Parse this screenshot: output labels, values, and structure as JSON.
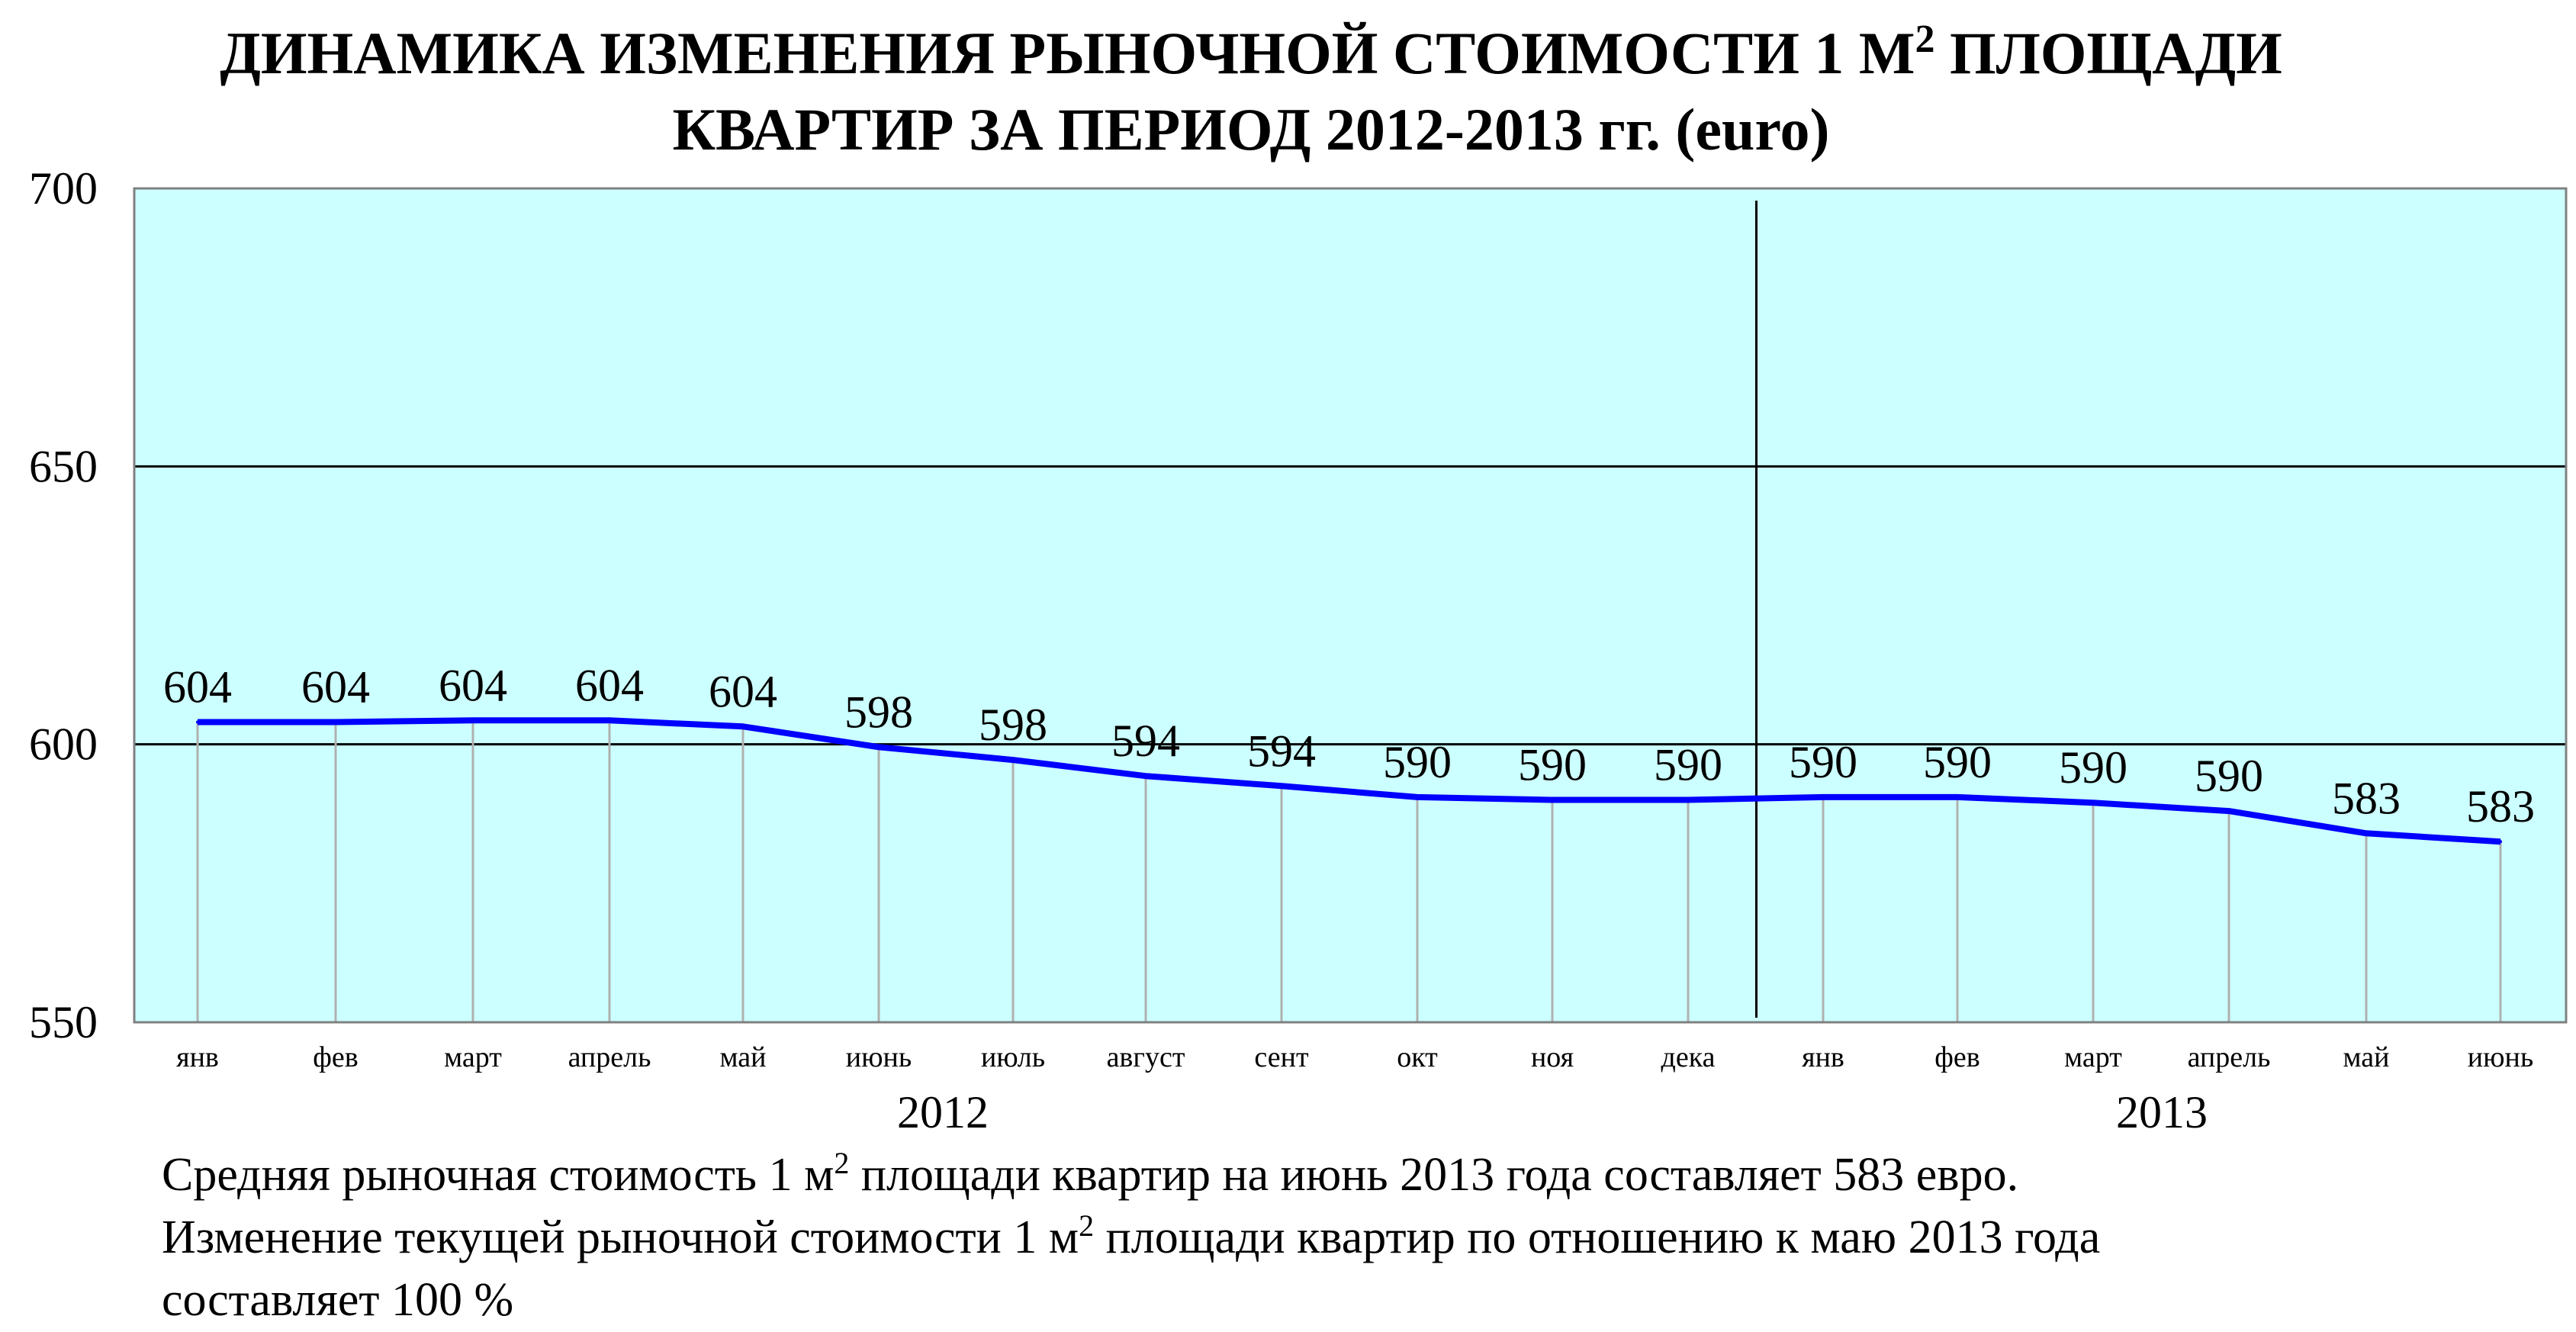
{
  "chart_data": {
    "type": "line",
    "title_line1_pre": "ДИНАМИКА ИЗМЕНЕНИЯ РЫНОЧНОЙ СТОИМОСТИ  1 М",
    "title_sup": "2",
    "title_line1_post": " ПЛОЩАДИ",
    "title_line2": "КВАРТИР ЗА ПЕРИОД 2012-2013 гг. (euro)",
    "categories": [
      "янв",
      "фев",
      "март",
      "апрель",
      "май",
      "июнь",
      "июль",
      "август",
      "сент",
      "окт",
      "ноя",
      "дека",
      "янв",
      "фев",
      "март",
      "апрель",
      "май",
      "июнь"
    ],
    "values": [
      604,
      604,
      604,
      604,
      604,
      598,
      598,
      594,
      594,
      590,
      590,
      590,
      590,
      590,
      590,
      590,
      583,
      583
    ],
    "line_values": [
      604,
      604,
      604.3,
      604.3,
      603.2,
      599.5,
      597.2,
      594.3,
      592.5,
      590.5,
      590,
      590,
      590.5,
      590.5,
      589.5,
      588,
      584,
      582.5
    ],
    "data_labels": [
      "604",
      "604",
      "604",
      "604",
      "604",
      "598",
      "598",
      "594",
      "594",
      "590",
      "590",
      "590",
      "590",
      "590",
      "590",
      "590",
      "583",
      "583"
    ],
    "years": [
      {
        "label": "2012",
        "start": 0,
        "end": 11
      },
      {
        "label": "2013",
        "start": 12,
        "end": 17
      }
    ],
    "ylim": [
      550,
      700
    ],
    "yticks": [
      "550",
      "600",
      "650",
      "700"
    ],
    "grid": true,
    "colors": {
      "plot_bg": "#ccffff",
      "line": "#0000ff",
      "grid": "#000000",
      "drop_line": "#b0b0b0"
    }
  },
  "caption": {
    "line1_pre": "Средняя рыночная стоимость 1 м",
    "line1_sup": "2",
    "line1_post": " площади квартир на июнь 2013 года составляет 583 евро.",
    "line2_pre": "Изменение текущей рыночной стоимости 1 м",
    "line2_sup": "2",
    "line2_post": " площади квартир по отношению к маю 2013 года",
    "line3": "составляет  100  %"
  }
}
